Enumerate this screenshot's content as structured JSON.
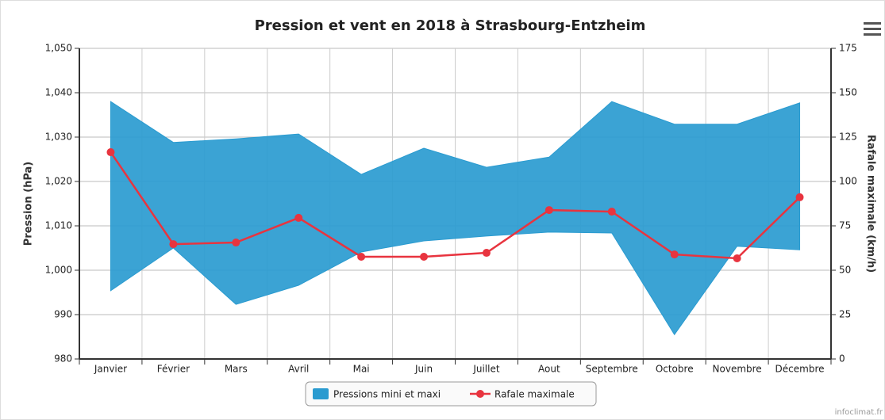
{
  "chart_data": {
    "type": "arearange-line",
    "title": "Pression et vent en 2018 à Strasbourg-Entzheim",
    "credit": "infoclimat.fr",
    "y_label": "Pression (hPa)",
    "y2_label": "Rafale maximale (km/h)",
    "categories": [
      "Janvier",
      "Février",
      "Mars",
      "Avril",
      "Mai",
      "Juin",
      "Juillet",
      "Aout",
      "Septembre",
      "Octobre",
      "Novembre",
      "Décembre"
    ],
    "series": [
      {
        "name": "Pressions mini et maxi",
        "color": "#2a9bd0",
        "high": [
          1038.0,
          1028.8,
          1029.6,
          1030.7,
          1021.6,
          1027.5,
          1023.2,
          1025.5,
          1038.0,
          1032.9,
          1032.9,
          1037.7
        ],
        "low": [
          995.4,
          1005.0,
          992.3,
          996.6,
          1004.1,
          1006.6,
          1007.7,
          1008.6,
          1008.4,
          985.5,
          1005.4,
          1004.6
        ]
      },
      {
        "name": "Rafale maximale",
        "color": "#e8343f",
        "axis": "y2",
        "values": [
          116.5,
          64.7,
          65.6,
          79.5,
          57.6,
          57.6,
          59.8,
          83.9,
          83.0,
          58.9,
          56.7,
          91.1
        ]
      }
    ],
    "ylim": [
      980,
      1050
    ],
    "yticks": [
      980,
      990,
      {
        "value": 1000,
        "label": "1,000"
      },
      {
        "value": 1010,
        "label": "1,010"
      },
      {
        "value": 1020,
        "label": "1,020"
      },
      {
        "value": 1030,
        "label": "1,030"
      },
      {
        "value": 1040,
        "label": "1,040"
      },
      {
        "value": 1050,
        "label": "1,050"
      }
    ],
    "y2lim": [
      0,
      175
    ],
    "y2ticks": [
      0,
      25,
      50,
      75,
      100,
      125,
      150,
      175
    ],
    "grid": true,
    "legend": "bottom"
  }
}
